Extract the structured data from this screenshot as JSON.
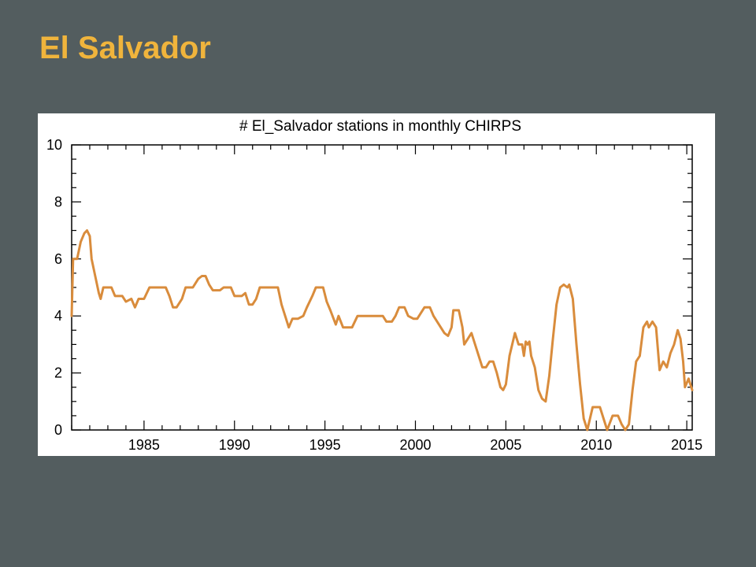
{
  "slide": {
    "title": "El Salvador"
  },
  "colors": {
    "background": "#535d5f",
    "title": "#f0b43c",
    "series": "#d98c3c"
  },
  "chart_data": {
    "type": "line",
    "title": "# El_Salvador stations in monthly CHIRPS",
    "xlabel": "",
    "ylabel": "",
    "xlim": [
      1981.0,
      2015.3
    ],
    "ylim": [
      0,
      10
    ],
    "grid": false,
    "x_ticks": [
      1985,
      1990,
      1995,
      2000,
      2005,
      2010,
      2015
    ],
    "x_tick_labels": [
      "1985",
      "1990",
      "1995",
      "2000",
      "2005",
      "2010",
      "2015"
    ],
    "y_ticks": [
      0,
      2,
      4,
      6,
      8,
      10
    ],
    "y_tick_labels": [
      "0",
      "2",
      "4",
      "6",
      "8",
      "10"
    ],
    "series": [
      {
        "color": "#d98c3c",
        "points": [
          [
            1981.0,
            4.0
          ],
          [
            1981.08,
            6.0
          ],
          [
            1981.3,
            6.0
          ],
          [
            1981.5,
            6.6
          ],
          [
            1981.7,
            6.9
          ],
          [
            1981.85,
            7.0
          ],
          [
            1982.0,
            6.8
          ],
          [
            1982.1,
            6.0
          ],
          [
            1982.3,
            5.4
          ],
          [
            1982.5,
            4.8
          ],
          [
            1982.6,
            4.6
          ],
          [
            1982.75,
            5.0
          ],
          [
            1983.2,
            5.0
          ],
          [
            1983.4,
            4.7
          ],
          [
            1983.8,
            4.7
          ],
          [
            1984.0,
            4.5
          ],
          [
            1984.3,
            4.6
          ],
          [
            1984.5,
            4.3
          ],
          [
            1984.7,
            4.6
          ],
          [
            1985.0,
            4.6
          ],
          [
            1985.3,
            5.0
          ],
          [
            1986.2,
            5.0
          ],
          [
            1986.4,
            4.7
          ],
          [
            1986.6,
            4.3
          ],
          [
            1986.8,
            4.3
          ],
          [
            1987.1,
            4.6
          ],
          [
            1987.3,
            5.0
          ],
          [
            1987.7,
            5.0
          ],
          [
            1988.0,
            5.3
          ],
          [
            1988.2,
            5.4
          ],
          [
            1988.4,
            5.4
          ],
          [
            1988.6,
            5.1
          ],
          [
            1988.8,
            4.9
          ],
          [
            1989.2,
            4.9
          ],
          [
            1989.4,
            5.0
          ],
          [
            1989.8,
            5.0
          ],
          [
            1990.0,
            4.7
          ],
          [
            1990.4,
            4.7
          ],
          [
            1990.6,
            4.8
          ],
          [
            1990.8,
            4.4
          ],
          [
            1991.0,
            4.4
          ],
          [
            1991.2,
            4.6
          ],
          [
            1991.4,
            5.0
          ],
          [
            1992.4,
            5.0
          ],
          [
            1992.6,
            4.4
          ],
          [
            1992.8,
            4.0
          ],
          [
            1993.0,
            3.6
          ],
          [
            1993.2,
            3.9
          ],
          [
            1993.5,
            3.9
          ],
          [
            1993.8,
            4.0
          ],
          [
            1994.0,
            4.3
          ],
          [
            1994.3,
            4.7
          ],
          [
            1994.5,
            5.0
          ],
          [
            1994.9,
            5.0
          ],
          [
            1995.1,
            4.5
          ],
          [
            1995.3,
            4.2
          ],
          [
            1995.6,
            3.7
          ],
          [
            1995.75,
            4.0
          ],
          [
            1996.0,
            3.6
          ],
          [
            1996.3,
            3.6
          ],
          [
            1996.5,
            3.6
          ],
          [
            1996.8,
            4.0
          ],
          [
            1998.2,
            4.0
          ],
          [
            1998.4,
            3.8
          ],
          [
            1998.7,
            3.8
          ],
          [
            1998.9,
            4.0
          ],
          [
            1999.1,
            4.3
          ],
          [
            1999.4,
            4.3
          ],
          [
            1999.6,
            4.0
          ],
          [
            1999.9,
            3.9
          ],
          [
            2000.1,
            3.9
          ],
          [
            2000.3,
            4.1
          ],
          [
            2000.5,
            4.3
          ],
          [
            2000.8,
            4.3
          ],
          [
            2001.0,
            4.0
          ],
          [
            2001.2,
            3.8
          ],
          [
            2001.4,
            3.6
          ],
          [
            2001.6,
            3.4
          ],
          [
            2001.8,
            3.3
          ],
          [
            2002.0,
            3.6
          ],
          [
            2002.1,
            4.2
          ],
          [
            2002.4,
            4.2
          ],
          [
            2002.6,
            3.6
          ],
          [
            2002.7,
            3.0
          ],
          [
            2002.9,
            3.2
          ],
          [
            2003.1,
            3.4
          ],
          [
            2003.3,
            3.0
          ],
          [
            2003.5,
            2.6
          ],
          [
            2003.7,
            2.2
          ],
          [
            2003.9,
            2.2
          ],
          [
            2004.1,
            2.4
          ],
          [
            2004.3,
            2.4
          ],
          [
            2004.5,
            2.0
          ],
          [
            2004.7,
            1.5
          ],
          [
            2004.85,
            1.4
          ],
          [
            2005.0,
            1.6
          ],
          [
            2005.2,
            2.6
          ],
          [
            2005.5,
            3.4
          ],
          [
            2005.7,
            3.0
          ],
          [
            2005.9,
            3.0
          ],
          [
            2006.0,
            2.6
          ],
          [
            2006.1,
            3.1
          ],
          [
            2006.2,
            3.0
          ],
          [
            2006.3,
            3.1
          ],
          [
            2006.4,
            2.6
          ],
          [
            2006.6,
            2.2
          ],
          [
            2006.8,
            1.4
          ],
          [
            2007.0,
            1.1
          ],
          [
            2007.2,
            1.0
          ],
          [
            2007.4,
            1.9
          ],
          [
            2007.6,
            3.2
          ],
          [
            2007.8,
            4.4
          ],
          [
            2008.0,
            5.0
          ],
          [
            2008.2,
            5.1
          ],
          [
            2008.4,
            5.0
          ],
          [
            2008.5,
            5.1
          ],
          [
            2008.7,
            4.6
          ],
          [
            2008.9,
            3.0
          ],
          [
            2009.1,
            1.6
          ],
          [
            2009.3,
            0.4
          ],
          [
            2009.5,
            0.0
          ],
          [
            2009.8,
            0.8
          ],
          [
            2010.2,
            0.8
          ],
          [
            2010.4,
            0.4
          ],
          [
            2010.6,
            0.0
          ],
          [
            2010.9,
            0.5
          ],
          [
            2011.2,
            0.5
          ],
          [
            2011.4,
            0.2
          ],
          [
            2011.6,
            0.0
          ],
          [
            2011.8,
            0.2
          ],
          [
            2012.0,
            1.4
          ],
          [
            2012.2,
            2.4
          ],
          [
            2012.4,
            2.6
          ],
          [
            2012.6,
            3.6
          ],
          [
            2012.8,
            3.8
          ],
          [
            2012.9,
            3.6
          ],
          [
            2013.1,
            3.8
          ],
          [
            2013.3,
            3.6
          ],
          [
            2013.5,
            2.1
          ],
          [
            2013.7,
            2.4
          ],
          [
            2013.9,
            2.2
          ],
          [
            2014.1,
            2.7
          ],
          [
            2014.3,
            3.0
          ],
          [
            2014.5,
            3.5
          ],
          [
            2014.65,
            3.2
          ],
          [
            2014.8,
            2.4
          ],
          [
            2014.9,
            1.5
          ],
          [
            2015.1,
            1.8
          ],
          [
            2015.3,
            1.4
          ]
        ]
      }
    ]
  }
}
